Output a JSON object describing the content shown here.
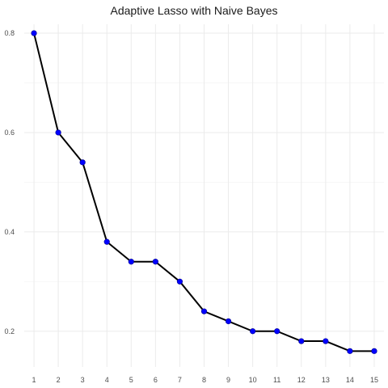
{
  "chart_data": {
    "type": "line",
    "title": "Adaptive Lasso with Naive Bayes",
    "xlabel": "",
    "ylabel": "",
    "x": [
      1,
      2,
      3,
      4,
      5,
      6,
      7,
      8,
      9,
      10,
      11,
      12,
      13,
      14,
      15
    ],
    "series": [
      {
        "values": [
          0.8,
          0.6,
          0.54,
          0.38,
          0.34,
          0.34,
          0.3,
          0.24,
          0.22,
          0.2,
          0.2,
          0.18,
          0.18,
          0.16,
          0.16
        ]
      }
    ],
    "x_ticks": [
      "1",
      "2",
      "3",
      "4",
      "5",
      "6",
      "7",
      "8",
      "9",
      "10",
      "11",
      "12",
      "13",
      "14",
      "15"
    ],
    "y_ticks": [
      "0.2",
      "0.4",
      "0.6",
      "0.8"
    ],
    "xlim": [
      0.6,
      15.4
    ],
    "ylim": [
      0.128,
      0.818
    ],
    "grid": true,
    "line_color": "#000000",
    "point_color": "#0000ff"
  }
}
